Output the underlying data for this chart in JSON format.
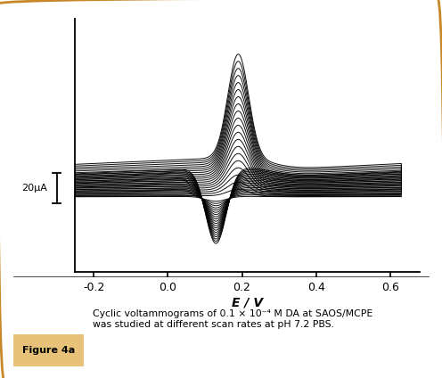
{
  "xlabel": "E / V",
  "x_min": -0.25,
  "x_max": 0.68,
  "x_ticks": [
    -0.2,
    0.0,
    0.2,
    0.4,
    0.6
  ],
  "x_tick_labels": [
    "-0.2",
    "0.0",
    "0.2",
    "0.4",
    "0.6"
  ],
  "scale_bar_label": "20μA",
  "figure_label": "Figure 4a",
  "caption": "Cyclic voltammograms of 0.1 × 10⁻⁴ M DA at SAOS/MCPE\nwas studied at different scan rates at pH 7.2 PBS.",
  "border_color": "#C8882A",
  "n_curves": 20,
  "curve_color": "#000000",
  "background_color": "#ffffff"
}
